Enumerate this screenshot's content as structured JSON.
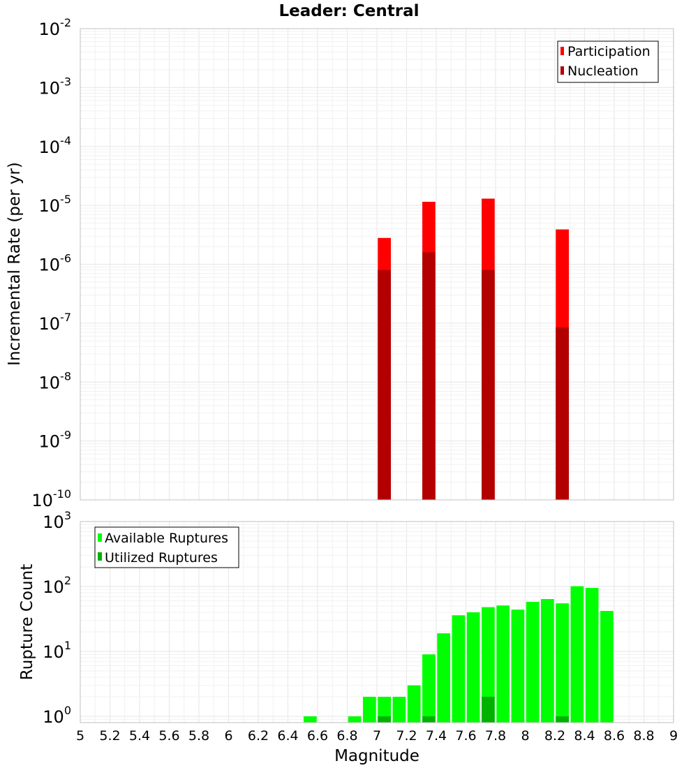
{
  "title": "Leader: Central",
  "colors": {
    "participation": "#ff0000",
    "nucleation": "#b20000",
    "available": "#00ff00",
    "utilized": "#00b200"
  },
  "chart_data": [
    {
      "type": "bar",
      "yscale": "log",
      "ylabel": "Incremental Rate (per yr)",
      "xlabel": "",
      "xlim": [
        5,
        9
      ],
      "ylim": [
        1e-10,
        0.01
      ],
      "y_tick_exponents": [
        -10,
        -9,
        -8,
        -7,
        -6,
        -5,
        -4,
        -3,
        -2
      ],
      "grid": true,
      "legend_position": "top-right",
      "series": [
        {
          "name": "Participation",
          "x": [
            7.05,
            7.35,
            7.75,
            8.25
          ],
          "values": [
            2.8e-06,
            1.15e-05,
            1.3e-05,
            3.9e-06
          ]
        },
        {
          "name": "Nucleation",
          "x": [
            7.05,
            7.35,
            7.75,
            8.25
          ],
          "values": [
            8e-07,
            1.6e-06,
            8e-07,
            8.5e-08
          ]
        }
      ]
    },
    {
      "type": "bar",
      "yscale": "log",
      "ylabel": "Rupture Count",
      "xlabel": "Magnitude",
      "xlim": [
        5,
        9
      ],
      "ylim": [
        0.8,
        1000
      ],
      "x_ticks": [
        "5",
        "5.2",
        "5.4",
        "5.6",
        "5.8",
        "6",
        "6.2",
        "6.4",
        "6.6",
        "6.8",
        "7",
        "7.2",
        "7.4",
        "7.6",
        "7.8",
        "8",
        "8.2",
        "8.4",
        "8.6",
        "8.8",
        "9"
      ],
      "y_tick_exponents": [
        0,
        1,
        2,
        3
      ],
      "grid": true,
      "legend_position": "top-left",
      "series": [
        {
          "name": "Available Ruptures",
          "x": [
            6.55,
            6.85,
            6.95,
            7.05,
            7.15,
            7.25,
            7.35,
            7.45,
            7.55,
            7.65,
            7.75,
            7.85,
            7.95,
            8.05,
            8.15,
            8.25,
            8.35,
            8.45,
            8.55
          ],
          "values": [
            1,
            1,
            2,
            2,
            2,
            3,
            9,
            19,
            36,
            40,
            48,
            51,
            44,
            58,
            64,
            55,
            101,
            95,
            42
          ]
        },
        {
          "name": "Utilized Ruptures",
          "x": [
            7.05,
            7.35,
            7.75,
            8.25
          ],
          "values": [
            1,
            1,
            2,
            1
          ]
        }
      ]
    }
  ]
}
